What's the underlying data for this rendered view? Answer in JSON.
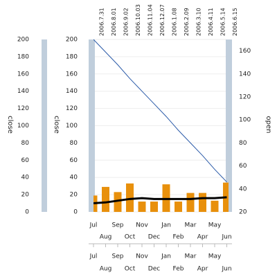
{
  "chart_data": {
    "type": "combo",
    "categories": [
      "Jul",
      "Aug",
      "Sep",
      "Oct",
      "Nov",
      "Dec",
      "Jan",
      "Feb",
      "Mar",
      "Apr",
      "May",
      "Jun"
    ],
    "top_categories": [
      "2006.7.31",
      "2006.8.01",
      "2006.9.02",
      "2006.10.03",
      "2006.11.04",
      "2006.12.07",
      "2006.1.08",
      "2006.2.09",
      "2006.3.10",
      "2006.4.11",
      "2006.5.14",
      "2006.6.15"
    ],
    "ylabel": "close",
    "y2label": "open",
    "ylim": [
      0,
      200
    ],
    "yticks": [
      0,
      20,
      40,
      60,
      80,
      100,
      120,
      140,
      160,
      180,
      200
    ],
    "y2lim": [
      20,
      170
    ],
    "y2ticks": [
      20,
      40,
      60,
      80,
      100,
      120,
      140,
      160
    ],
    "grid": true,
    "series": [
      {
        "type": "bar",
        "color": "#e8900c",
        "values": [
          19,
          29,
          23,
          33,
          12,
          12,
          32,
          12,
          22,
          22,
          13,
          34
        ]
      },
      {
        "type": "line",
        "color": "#000000",
        "values": [
          10,
          11,
          13,
          15,
          16,
          15,
          15,
          15,
          15,
          16,
          16,
          17
        ]
      },
      {
        "type": "line",
        "axis": "y2",
        "color": "#2a5aa8",
        "values": [
          170,
          159,
          148,
          136,
          125,
          114,
          103,
          91,
          80,
          69,
          57,
          46
        ]
      }
    ]
  }
}
